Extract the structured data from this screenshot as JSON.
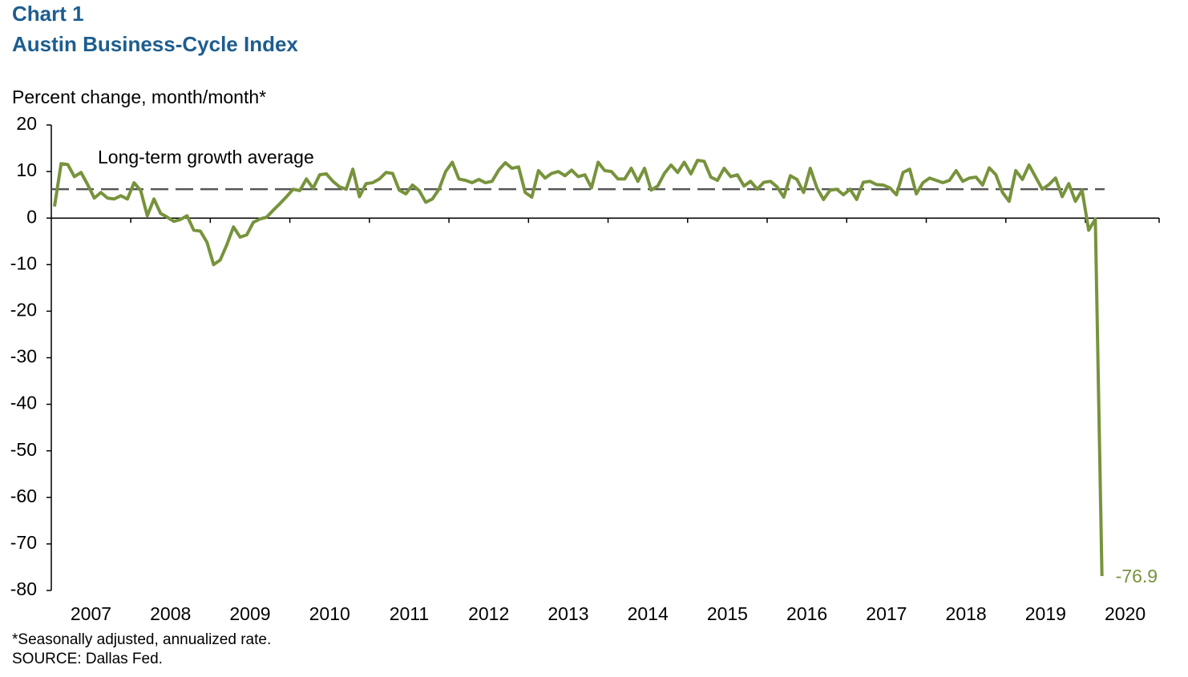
{
  "chart_data": {
    "type": "line",
    "title": "Chart 1",
    "subtitle": "Austin Business-Cycle Index",
    "y_label": "Percent change, month/month*",
    "notes": [
      "*Seasonally adjusted, annualized rate.",
      "SOURCE: Dallas Fed."
    ],
    "reference_line": {
      "value": 6.2,
      "label": "Long-term growth average",
      "color": "#555555"
    },
    "categories": [
      "2007",
      null,
      null,
      null,
      null,
      null,
      null,
      null,
      null,
      null,
      null,
      null,
      "2008",
      null,
      null,
      null,
      null,
      null,
      null,
      null,
      null,
      null,
      null,
      null,
      "2009",
      null,
      null,
      null,
      null,
      null,
      null,
      null,
      null,
      null,
      null,
      null,
      "2010",
      null,
      null,
      null,
      null,
      null,
      null,
      null,
      null,
      null,
      null,
      null,
      "2011",
      null,
      null,
      null,
      null,
      null,
      null,
      null,
      null,
      null,
      null,
      null,
      "2012",
      null,
      null,
      null,
      null,
      null,
      null,
      null,
      null,
      null,
      null,
      null,
      "2013",
      null,
      null,
      null,
      null,
      null,
      null,
      null,
      null,
      null,
      null,
      null,
      "2014",
      null,
      null,
      null,
      null,
      null,
      null,
      null,
      null,
      null,
      null,
      null,
      "2015",
      null,
      null,
      null,
      null,
      null,
      null,
      null,
      null,
      null,
      null,
      null,
      "2016",
      null,
      null,
      null,
      null,
      null,
      null,
      null,
      null,
      null,
      null,
      null,
      "2017",
      null,
      null,
      null,
      null,
      null,
      null,
      null,
      null,
      null,
      null,
      null,
      "2018",
      null,
      null,
      null,
      null,
      null,
      null,
      null,
      null,
      null,
      null,
      null,
      "2019",
      null,
      null,
      null,
      null,
      null,
      null,
      null,
      null,
      null,
      null,
      null,
      "2020",
      null,
      null
    ],
    "series": [
      {
        "name": "Austin Business-Cycle Index",
        "color": "#77933c",
        "values": [
          2.5,
          11.7,
          11.5,
          8.9,
          9.8,
          7.2,
          4.3,
          5.5,
          4.3,
          4.1,
          4.8,
          4.1,
          7.6,
          5.9,
          0.5,
          4.1,
          1.0,
          0.2,
          -0.7,
          -0.3,
          0.5,
          -2.6,
          -2.8,
          -5.2,
          -10,
          -9,
          -5.7,
          -1.9,
          -4.1,
          -3.6,
          -0.9,
          -0.2,
          0.2,
          1.7,
          3.1,
          4.6,
          6.2,
          5.9,
          8.4,
          6.4,
          9.3,
          9.5,
          7.9,
          6.7,
          6.2,
          10.5,
          4.6,
          7.4,
          7.6,
          8.4,
          9.8,
          9.6,
          6.0,
          5.2,
          7.1,
          5.9,
          3.4,
          4.1,
          6.2,
          10.0,
          12.0,
          8.4,
          8.1,
          7.6,
          8.3,
          7.6,
          7.9,
          10.3,
          11.9,
          10.7,
          11.0,
          5.5,
          4.5,
          10.2,
          8.6,
          9.6,
          10.0,
          9.1,
          10.3,
          8.9,
          9.3,
          6.5,
          12.0,
          10.2,
          10.0,
          8.4,
          8.4,
          10.7,
          7.9,
          10.7,
          6.0,
          6.9,
          9.6,
          11.4,
          9.8,
          12.0,
          9.5,
          12.4,
          12.2,
          8.8,
          8.1,
          10.7,
          8.9,
          9.3,
          6.9,
          7.9,
          6.2,
          7.7,
          7.9,
          6.7,
          4.5,
          9.1,
          8.3,
          5.5,
          10.7,
          6.5,
          4.0,
          6.0,
          6.2,
          5.0,
          6.2,
          4.0,
          7.7,
          7.9,
          7.2,
          7.1,
          6.5,
          5.0,
          9.8,
          10.5,
          5.2,
          7.6,
          8.6,
          8.1,
          7.6,
          8.1,
          10.2,
          7.9,
          8.6,
          8.8,
          7.1,
          10.8,
          9.3,
          5.5,
          3.6,
          10.2,
          8.3,
          11.4,
          8.8,
          6.2,
          7.2,
          8.6,
          4.6,
          7.4,
          3.6,
          6.0,
          -2.6,
          -0.2,
          -76.9
        ]
      }
    ],
    "ylim": [
      -80,
      20
    ],
    "yticks": [
      20,
      10,
      0,
      -10,
      -20,
      -30,
      -40,
      -50,
      -60,
      -70,
      -80
    ]
  }
}
